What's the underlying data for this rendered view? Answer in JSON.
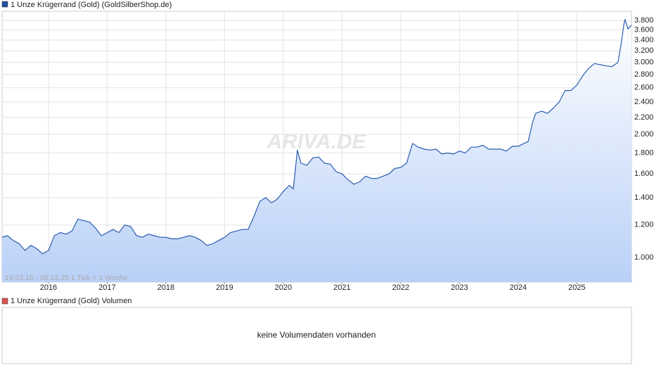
{
  "chart_data": {
    "type": "line",
    "title": "1 Unze Krügerrand (Gold) (GoldSilberShop.de)",
    "legend_color": "#1f4e9c",
    "color": "#2a5db0",
    "log_y": true,
    "grid": true,
    "watermark": "ARIVA.DE",
    "footnote": "19.03.15 - 05.12.25    1 Tick = 1 Woche",
    "xlim": [
      2015.21,
      2025.93
    ],
    "xticks": [
      2016,
      2017,
      2018,
      2019,
      2020,
      2021,
      2022,
      2023,
      2024,
      2025
    ],
    "ylim": [
      870,
      4000
    ],
    "yticks": [
      {
        "value": 1000,
        "label": "1.000"
      },
      {
        "value": 1200,
        "label": "1.200"
      },
      {
        "value": 1400,
        "label": "1.400"
      },
      {
        "value": 1600,
        "label": "1.600"
      },
      {
        "value": 1800,
        "label": "1.800"
      },
      {
        "value": 2000,
        "label": "2.000"
      },
      {
        "value": 2200,
        "label": "2.200"
      },
      {
        "value": 2400,
        "label": "2.400"
      },
      {
        "value": 2600,
        "label": "2.600"
      },
      {
        "value": 2800,
        "label": "2.800"
      },
      {
        "value": 3000,
        "label": "3.000"
      },
      {
        "value": 3200,
        "label": "3.200"
      },
      {
        "value": 3400,
        "label": "3.400"
      },
      {
        "value": 3600,
        "label": "3.600"
      },
      {
        "value": 3800,
        "label": "3.800"
      }
    ],
    "x": [
      2015.21,
      2015.3,
      2015.4,
      2015.5,
      2015.6,
      2015.7,
      2015.8,
      2015.9,
      2016.0,
      2016.1,
      2016.2,
      2016.3,
      2016.4,
      2016.5,
      2016.6,
      2016.7,
      2016.8,
      2016.9,
      2017.0,
      2017.1,
      2017.2,
      2017.3,
      2017.4,
      2017.5,
      2017.6,
      2017.7,
      2017.8,
      2017.9,
      2018.0,
      2018.1,
      2018.2,
      2018.3,
      2018.4,
      2018.5,
      2018.6,
      2018.7,
      2018.8,
      2018.9,
      2019.0,
      2019.1,
      2019.2,
      2019.3,
      2019.4,
      2019.5,
      2019.6,
      2019.7,
      2019.8,
      2019.9,
      2020.0,
      2020.1,
      2020.17,
      2020.24,
      2020.3,
      2020.4,
      2020.5,
      2020.6,
      2020.7,
      2020.8,
      2020.9,
      2021.0,
      2021.1,
      2021.2,
      2021.3,
      2021.4,
      2021.5,
      2021.6,
      2021.7,
      2021.8,
      2021.9,
      2022.0,
      2022.1,
      2022.2,
      2022.3,
      2022.4,
      2022.5,
      2022.6,
      2022.7,
      2022.8,
      2022.9,
      2023.0,
      2023.1,
      2023.2,
      2023.3,
      2023.4,
      2023.5,
      2023.6,
      2023.7,
      2023.8,
      2023.9,
      2024.0,
      2024.1,
      2024.17,
      2024.25,
      2024.3,
      2024.4,
      2024.5,
      2024.6,
      2024.7,
      2024.8,
      2024.9,
      2025.0,
      2025.1,
      2025.2,
      2025.3,
      2025.4,
      2025.5,
      2025.6,
      2025.7,
      2025.75,
      2025.8,
      2025.82,
      2025.87,
      2025.93
    ],
    "values": [
      1120,
      1130,
      1100,
      1080,
      1040,
      1070,
      1050,
      1020,
      1040,
      1130,
      1150,
      1140,
      1160,
      1240,
      1230,
      1220,
      1180,
      1130,
      1150,
      1170,
      1150,
      1200,
      1190,
      1130,
      1120,
      1140,
      1130,
      1120,
      1120,
      1110,
      1110,
      1120,
      1130,
      1120,
      1100,
      1070,
      1080,
      1100,
      1120,
      1150,
      1160,
      1170,
      1170,
      1260,
      1370,
      1400,
      1360,
      1390,
      1450,
      1500,
      1470,
      1830,
      1700,
      1680,
      1750,
      1760,
      1700,
      1690,
      1620,
      1600,
      1550,
      1510,
      1530,
      1580,
      1560,
      1560,
      1580,
      1600,
      1650,
      1660,
      1700,
      1900,
      1860,
      1840,
      1830,
      1840,
      1790,
      1800,
      1790,
      1820,
      1800,
      1860,
      1860,
      1880,
      1840,
      1840,
      1840,
      1820,
      1870,
      1870,
      1900,
      1920,
      2150,
      2250,
      2280,
      2250,
      2320,
      2400,
      2560,
      2560,
      2640,
      2780,
      2900,
      2980,
      2960,
      2940,
      2930,
      3000,
      3300,
      3700,
      3820,
      3620,
      3700
    ]
  },
  "volume_panel": {
    "title": "1 Unze Krügerrand (Gold) Volumen",
    "legend_color": "#d9534f",
    "message": "keine Volumendaten vorhanden"
  }
}
